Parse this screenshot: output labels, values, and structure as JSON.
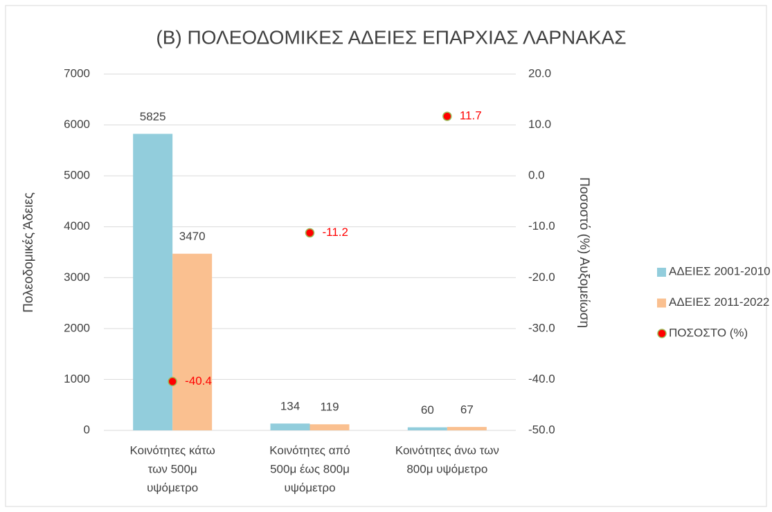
{
  "chart_data": {
    "type": "bar",
    "title": "(Β) ΠΟΛΕΟΔΟΜΙΚΕΣ ΑΔΕΙΕΣ ΕΠΑΡΧΙΑΣ ΛΑΡΝΑΚΑΣ",
    "ylabel": "Πολεοδομικές Άδειες",
    "y2label": "Ποσοστό (%) Αυξομείωση",
    "categories": [
      [
        "Κοινότητες κάτω",
        "των 500μ",
        "υψόμετρο"
      ],
      [
        "Κοινότητες από",
        "500μ έως 800μ",
        "υψόμετρο"
      ],
      [
        "Κοινότητες άνω των",
        "800μ υψόμετρο"
      ]
    ],
    "series": [
      {
        "name": "ΑΔΕΙΕΣ 2001-2010",
        "color": "#92cddc",
        "values": [
          5825,
          134,
          60
        ]
      },
      {
        "name": "ΑΔΕΙΕΣ 2011-2022",
        "color": "#fac090",
        "values": [
          3470,
          119,
          67
        ]
      },
      {
        "name": "ΠΟΣΟΣΤΟ (%)",
        "type": "scatter",
        "axis": "y2",
        "color": "#ff0000",
        "edge_color": "#9bbb59",
        "label_color": "#ff0000",
        "values": [
          -40.4,
          -11.2,
          11.7
        ]
      }
    ],
    "ylim": [
      0,
      7000
    ],
    "yticks": [
      0,
      1000,
      2000,
      3000,
      4000,
      5000,
      6000,
      7000
    ],
    "y2lim": [
      -50,
      20
    ],
    "y2ticks": [
      {
        "value": -50,
        "label": "-50.0"
      },
      {
        "value": -40,
        "label": "-40.0"
      },
      {
        "value": -30,
        "label": "-30.0"
      },
      {
        "value": -20,
        "label": "-20.0"
      },
      {
        "value": -10,
        "label": "-10.0"
      },
      {
        "value": 0,
        "label": "0.0"
      },
      {
        "value": 10,
        "label": "10.0"
      },
      {
        "value": 20,
        "label": "20.0"
      }
    ],
    "grid": true,
    "legend": "right"
  }
}
